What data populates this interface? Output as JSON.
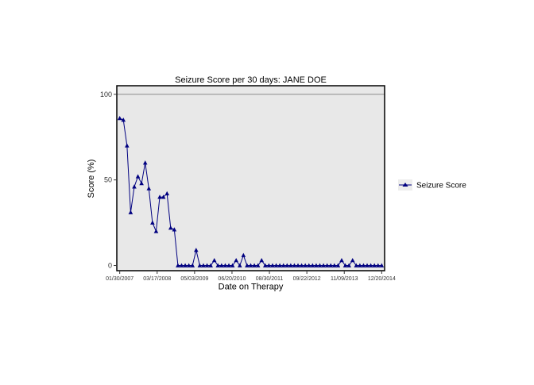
{
  "chart_data": {
    "type": "line",
    "title": "Seizure Score per 30 days: JANE DOE",
    "xlabel": "Date on Therapy",
    "ylabel": "Score (%)",
    "ylim": [
      -3,
      105
    ],
    "reference_line": {
      "y": 100,
      "color": "#9e9e9e"
    },
    "x_tick_labels": [
      "01/30/2007",
      "03/17/2008",
      "05/03/2009",
      "06/20/2010",
      "08/30/2011",
      "09/22/2012",
      "11/09/2013",
      "12/20/2014"
    ],
    "y_ticks": [
      0,
      50,
      100
    ],
    "x_index_range": [
      -0.8,
      72.8
    ],
    "grid": false,
    "panel_background": "#e8e8e8",
    "legend_position": "right",
    "series": [
      {
        "name": "Seizure Score",
        "color": "#000080",
        "marker": "triangle",
        "values": [
          86,
          85,
          70,
          31,
          46,
          52,
          48,
          60,
          45,
          25,
          20,
          40,
          40,
          42,
          22,
          21,
          0,
          0,
          0,
          0,
          0,
          9,
          0,
          0,
          0,
          0,
          3,
          0,
          0,
          0,
          0,
          0,
          3,
          0,
          6,
          0,
          0,
          0,
          0,
          3,
          0,
          0,
          0,
          0,
          0,
          0,
          0,
          0,
          0,
          0,
          0,
          0,
          0,
          0,
          0,
          0,
          0,
          0,
          0,
          0,
          0,
          3,
          0,
          0,
          3,
          0,
          0,
          0,
          0,
          0,
          0,
          0,
          0
        ]
      }
    ]
  }
}
